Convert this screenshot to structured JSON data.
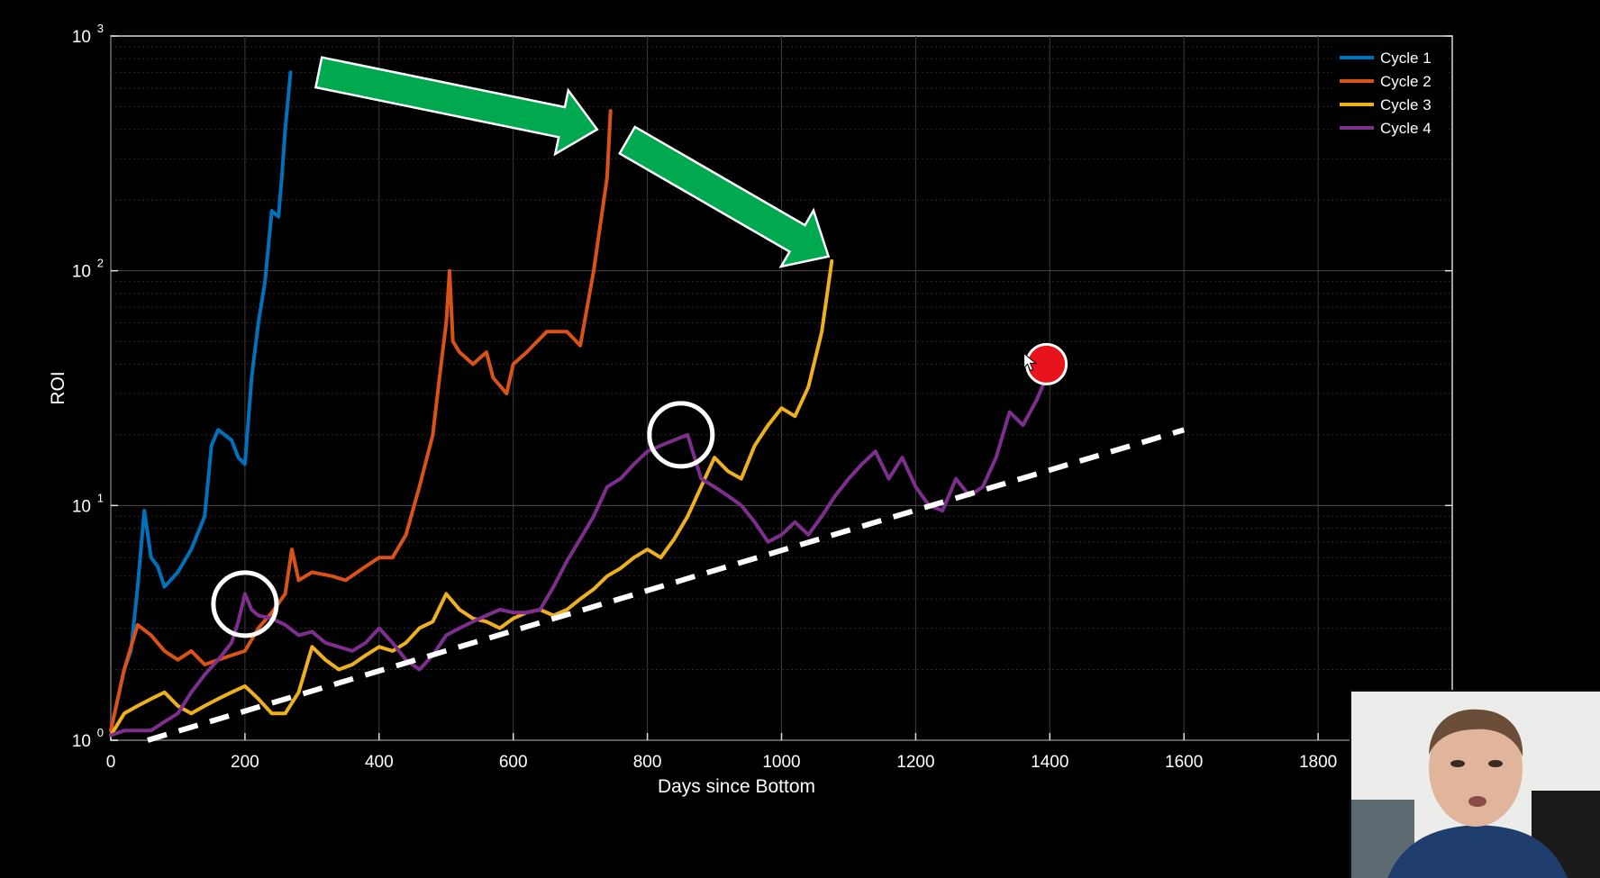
{
  "chart_data": {
    "type": "line",
    "xlabel": "Days since Bottom",
    "ylabel": "ROI",
    "xlim": [
      0,
      2000
    ],
    "ylim": [
      1,
      1000
    ],
    "yscale": "log",
    "x_ticks": [
      "0",
      "200",
      "400",
      "600",
      "800",
      "1000",
      "1200",
      "1400",
      "1600",
      "1800"
    ],
    "y_ticks": [
      {
        "base": "10",
        "exp": "0"
      },
      {
        "base": "10",
        "exp": "1"
      },
      {
        "base": "10",
        "exp": "2"
      },
      {
        "base": "10",
        "exp": "3"
      }
    ],
    "grid": true,
    "legend_position": "top-right",
    "series": [
      {
        "name": "Cycle 1",
        "color": "#0072BD",
        "x": [
          0,
          20,
          30,
          40,
          50,
          60,
          70,
          80,
          100,
          120,
          140,
          150,
          160,
          180,
          190,
          200,
          210,
          220,
          230,
          240,
          250,
          255,
          260,
          268
        ],
        "y": [
          1.1,
          2.0,
          2.4,
          4.5,
          9.5,
          6.0,
          5.5,
          4.5,
          5.2,
          6.5,
          9.0,
          18,
          21,
          19,
          16,
          15,
          35,
          60,
          90,
          180,
          170,
          250,
          400,
          700
        ]
      },
      {
        "name": "Cycle 2",
        "color": "#D95319",
        "x": [
          0,
          20,
          40,
          60,
          80,
          100,
          120,
          140,
          160,
          180,
          200,
          220,
          240,
          260,
          270,
          280,
          300,
          330,
          350,
          380,
          400,
          420,
          440,
          460,
          480,
          490,
          500,
          505,
          510,
          520,
          540,
          560,
          570,
          590,
          600,
          620,
          650,
          680,
          700,
          720,
          740,
          745
        ],
        "y": [
          1.1,
          2.0,
          3.1,
          2.8,
          2.4,
          2.2,
          2.4,
          2.1,
          2.2,
          2.3,
          2.4,
          3.0,
          3.5,
          4.2,
          6.5,
          4.8,
          5.2,
          5.0,
          4.8,
          5.5,
          6.0,
          6.0,
          7.5,
          12,
          20,
          35,
          60,
          100,
          50,
          45,
          40,
          45,
          35,
          30,
          40,
          45,
          55,
          55,
          48,
          100,
          250,
          480
        ]
      },
      {
        "name": "Cycle 3",
        "color": "#EDB120",
        "x": [
          0,
          20,
          40,
          60,
          80,
          100,
          120,
          140,
          160,
          180,
          200,
          220,
          240,
          260,
          280,
          300,
          320,
          340,
          360,
          380,
          400,
          420,
          440,
          460,
          480,
          500,
          520,
          540,
          560,
          580,
          600,
          620,
          640,
          660,
          680,
          700,
          720,
          740,
          760,
          780,
          800,
          820,
          840,
          860,
          880,
          900,
          920,
          940,
          960,
          980,
          1000,
          1020,
          1040,
          1060,
          1075
        ],
        "y": [
          1.05,
          1.3,
          1.4,
          1.5,
          1.6,
          1.4,
          1.3,
          1.4,
          1.5,
          1.6,
          1.7,
          1.5,
          1.3,
          1.3,
          1.6,
          2.5,
          2.2,
          2.0,
          2.1,
          2.3,
          2.5,
          2.4,
          2.6,
          3.0,
          3.2,
          4.2,
          3.6,
          3.3,
          3.2,
          3.0,
          3.3,
          3.5,
          3.6,
          3.4,
          3.6,
          4.0,
          4.4,
          5.0,
          5.4,
          6.0,
          6.5,
          6.0,
          7.2,
          9.0,
          12,
          16,
          14,
          13,
          18,
          22,
          26,
          24,
          32,
          55,
          110
        ]
      },
      {
        "name": "Cycle 4",
        "color": "#7E2F8E",
        "x": [
          0,
          20,
          40,
          60,
          80,
          100,
          120,
          140,
          160,
          180,
          190,
          200,
          210,
          220,
          240,
          260,
          280,
          300,
          320,
          340,
          360,
          380,
          400,
          420,
          440,
          460,
          480,
          500,
          520,
          540,
          560,
          580,
          600,
          620,
          640,
          660,
          680,
          700,
          720,
          740,
          760,
          780,
          800,
          820,
          840,
          860,
          880,
          900,
          920,
          940,
          960,
          980,
          1000,
          1020,
          1040,
          1060,
          1080,
          1100,
          1120,
          1140,
          1160,
          1180,
          1200,
          1220,
          1240,
          1260,
          1280,
          1300,
          1320,
          1340,
          1360,
          1380,
          1400
        ],
        "y": [
          1.05,
          1.1,
          1.1,
          1.1,
          1.2,
          1.3,
          1.6,
          1.9,
          2.2,
          2.6,
          3.2,
          4.2,
          3.6,
          3.4,
          3.3,
          3.1,
          2.8,
          2.9,
          2.6,
          2.5,
          2.4,
          2.6,
          3.0,
          2.6,
          2.2,
          2.0,
          2.3,
          2.8,
          3.0,
          3.2,
          3.4,
          3.6,
          3.5,
          3.5,
          3.6,
          4.5,
          5.8,
          7.2,
          9.0,
          12,
          13,
          15,
          17,
          18,
          19,
          20,
          13,
          12,
          11,
          10,
          8.5,
          7.0,
          7.5,
          8.5,
          7.5,
          9.0,
          11,
          13,
          15,
          17,
          13,
          16,
          12,
          10,
          9.5,
          13,
          11,
          12,
          16,
          25,
          22,
          28,
          38
        ]
      }
    ],
    "annotations": {
      "trend_line": {
        "x": [
          55,
          1600
        ],
        "y": [
          1.0,
          21
        ],
        "color": "#FFFFFF"
      },
      "highlight_circles": [
        {
          "x": 200,
          "y": 3.8
        },
        {
          "x": 850,
          "y": 20
        }
      ],
      "current_point": {
        "x": 1395,
        "y": 40,
        "color": "#E8141B"
      },
      "arrows": [
        {
          "from": [
            310,
            700
          ],
          "to": [
            725,
            400
          ],
          "color": "#00A94F"
        },
        {
          "from": [
            770,
            360
          ],
          "to": [
            1070,
            115
          ],
          "color": "#00A94F"
        }
      ]
    }
  }
}
